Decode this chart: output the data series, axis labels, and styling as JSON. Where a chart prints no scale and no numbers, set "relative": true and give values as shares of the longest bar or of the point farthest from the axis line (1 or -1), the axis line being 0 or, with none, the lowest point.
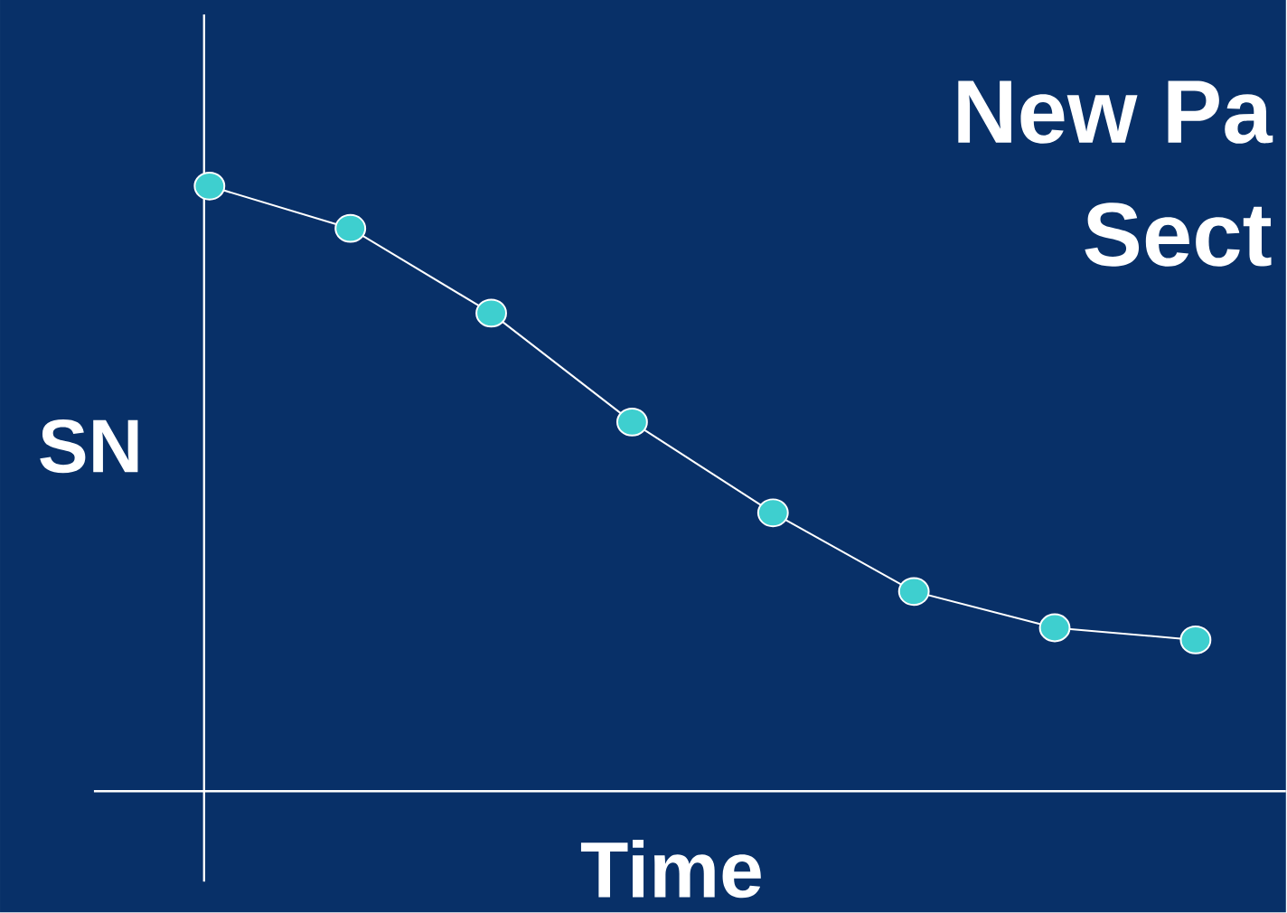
{
  "chart_data": {
    "type": "line",
    "title": "New Pa",
    "subtitle": "Sect",
    "xlabel": "Time",
    "ylabel": "SN",
    "relative": true,
    "marker": "circle",
    "line_style": "solid",
    "categories": [
      null,
      null,
      null,
      null,
      null,
      null,
      null,
      null
    ],
    "series": [
      {
        "color": "#ffffff",
        "colors": [
          "#3ecfcf",
          "#3ecfcf",
          "#3ecfcf",
          "#3ecfcf",
          "#3ecfcf",
          "#3ecfcf",
          "#3ecfcf",
          "#3ecfcf"
        ],
        "values": [
          1,
          0.93,
          0.79,
          0.61,
          0.46,
          0.33,
          0.27,
          0.25
        ]
      }
    ]
  }
}
